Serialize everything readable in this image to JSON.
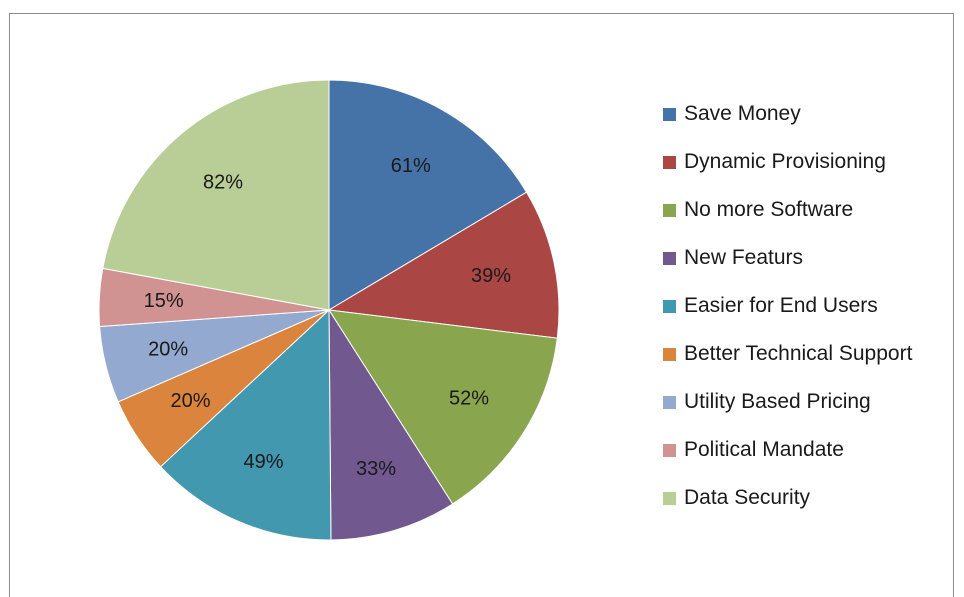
{
  "chart_data": {
    "type": "pie",
    "title": "",
    "legend_position": "right",
    "slices": [
      {
        "name": "Save Money",
        "value": 61,
        "label": "61%",
        "color": "#4572A7"
      },
      {
        "name": "Dynamic Provisioning",
        "value": 39,
        "label": "39%",
        "color": "#AA4643"
      },
      {
        "name": "No more Software",
        "value": 52,
        "label": "52%",
        "color": "#89A54E"
      },
      {
        "name": "New Featurs",
        "value": 33,
        "label": "33%",
        "color": "#71588F"
      },
      {
        "name": "Easier for End Users",
        "value": 49,
        "label": "49%",
        "color": "#4198AF"
      },
      {
        "name": "Better Technical Support",
        "value": 20,
        "label": "20%",
        "color": "#DB843D"
      },
      {
        "name": "Utility Based Pricing",
        "value": 20,
        "label": "20%",
        "color": "#93A9CF"
      },
      {
        "name": "Political Mandate",
        "value": 15,
        "label": "15%",
        "color": "#D19392"
      },
      {
        "name": "Data Security",
        "value": 82,
        "label": "82%",
        "color": "#B9CD96"
      }
    ]
  }
}
